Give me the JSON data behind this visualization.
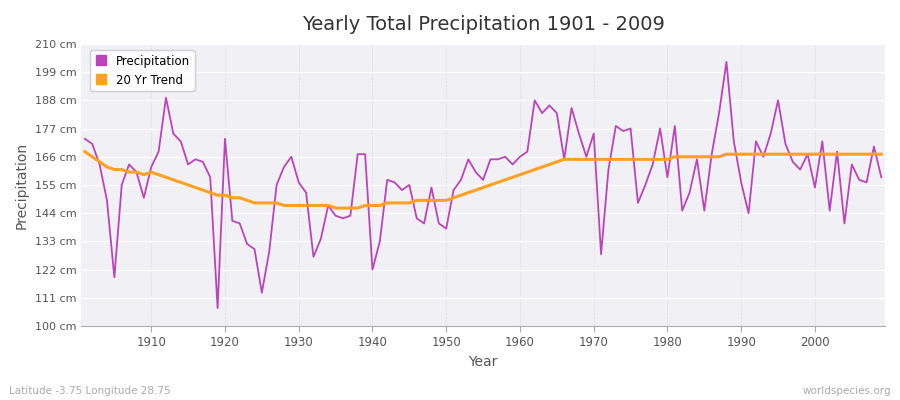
{
  "title": "Yearly Total Precipitation 1901 - 2009",
  "xlabel": "Year",
  "ylabel": "Precipitation",
  "lat_lon_label": "Latitude -3.75 Longitude 28.75",
  "watermark": "worldspecies.org",
  "fig_bg_color": "#ffffff",
  "plot_bg_color": "#f0f0f5",
  "precip_color": "#bb44bb",
  "trend_color": "#ffa020",
  "ylim": [
    100,
    210
  ],
  "yticks": [
    100,
    111,
    122,
    133,
    144,
    155,
    166,
    177,
    188,
    199,
    210
  ],
  "ytick_labels": [
    "100 cm",
    "111 cm",
    "122 cm",
    "133 cm",
    "144 cm",
    "155 cm",
    "166 cm",
    "177 cm",
    "188 cm",
    "199 cm",
    "210 cm"
  ],
  "years": [
    1901,
    1902,
    1903,
    1904,
    1905,
    1906,
    1907,
    1908,
    1909,
    1910,
    1911,
    1912,
    1913,
    1914,
    1915,
    1916,
    1917,
    1918,
    1919,
    1920,
    1921,
    1922,
    1923,
    1924,
    1925,
    1926,
    1927,
    1928,
    1929,
    1930,
    1931,
    1932,
    1933,
    1934,
    1935,
    1936,
    1937,
    1938,
    1939,
    1940,
    1941,
    1942,
    1943,
    1944,
    1945,
    1946,
    1947,
    1948,
    1949,
    1950,
    1951,
    1952,
    1953,
    1954,
    1955,
    1956,
    1957,
    1958,
    1959,
    1960,
    1961,
    1962,
    1963,
    1964,
    1965,
    1966,
    1967,
    1968,
    1969,
    1970,
    1971,
    1972,
    1973,
    1974,
    1975,
    1976,
    1977,
    1978,
    1979,
    1980,
    1981,
    1982,
    1983,
    1984,
    1985,
    1986,
    1987,
    1988,
    1989,
    1990,
    1991,
    1992,
    1993,
    1994,
    1995,
    1996,
    1997,
    1998,
    1999,
    2000,
    2001,
    2002,
    2003,
    2004,
    2005,
    2006,
    2007,
    2008,
    2009
  ],
  "precip": [
    173,
    171,
    163,
    149,
    119,
    155,
    163,
    160,
    150,
    162,
    168,
    189,
    175,
    172,
    163,
    165,
    164,
    158,
    107,
    173,
    141,
    140,
    132,
    130,
    113,
    129,
    155,
    162,
    166,
    156,
    152,
    127,
    134,
    147,
    143,
    142,
    143,
    167,
    167,
    122,
    133,
    157,
    156,
    153,
    155,
    142,
    140,
    154,
    140,
    138,
    153,
    157,
    165,
    160,
    157,
    165,
    165,
    166,
    163,
    166,
    168,
    188,
    183,
    186,
    183,
    165,
    185,
    175,
    166,
    175,
    128,
    161,
    178,
    176,
    177,
    148,
    155,
    163,
    177,
    158,
    178,
    145,
    152,
    165,
    145,
    167,
    183,
    203,
    172,
    156,
    144,
    172,
    166,
    175,
    188,
    171,
    164,
    161,
    167,
    154,
    172,
    145,
    168,
    140,
    163,
    157,
    156,
    170,
    158
  ],
  "trend": [
    168,
    166,
    164,
    162,
    161,
    161,
    160,
    160,
    159,
    160,
    159,
    158,
    157,
    156,
    155,
    154,
    153,
    152,
    151,
    151,
    150,
    150,
    149,
    148,
    148,
    148,
    148,
    147,
    147,
    147,
    147,
    147,
    147,
    147,
    146,
    146,
    146,
    146,
    147,
    147,
    147,
    148,
    148,
    148,
    148,
    149,
    149,
    149,
    149,
    149,
    150,
    151,
    152,
    153,
    154,
    155,
    156,
    157,
    158,
    159,
    160,
    161,
    162,
    163,
    164,
    165,
    165,
    165,
    165,
    165,
    165,
    165,
    165,
    165,
    165,
    165,
    165,
    165,
    165,
    165,
    166,
    166,
    166,
    166,
    166,
    166,
    166,
    167,
    167,
    167,
    167,
    167,
    167,
    167,
    167,
    167,
    167,
    167,
    167,
    167,
    167,
    167,
    167,
    167,
    167,
    167,
    167,
    167,
    167
  ]
}
